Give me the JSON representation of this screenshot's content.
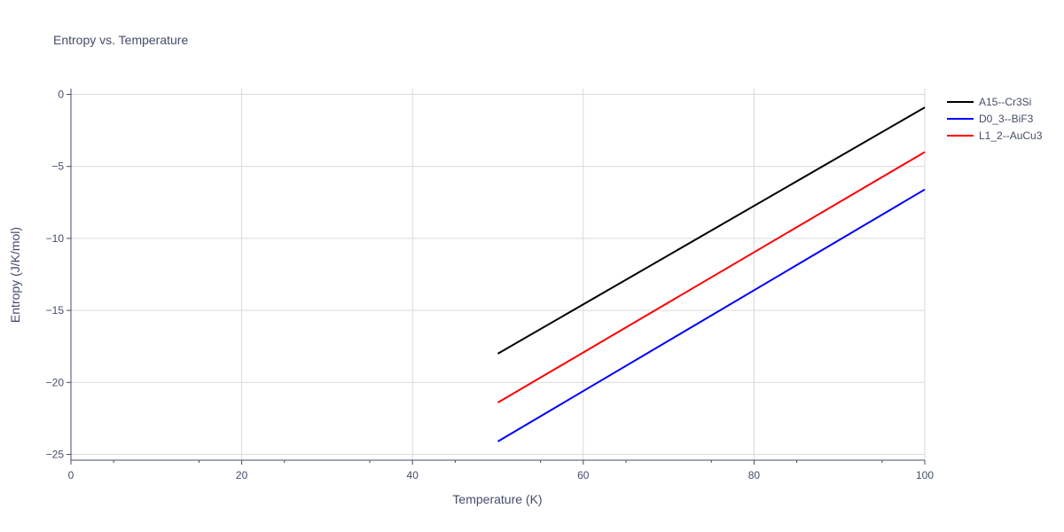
{
  "chart_data": {
    "type": "line",
    "title": "Entropy vs. Temperature",
    "xlabel": "Temperature (K)",
    "ylabel": "Entropy (J/K/mol)",
    "xlim": [
      0,
      100
    ],
    "ylim": [
      -25.4,
      0.4
    ],
    "xticks": [
      0,
      20,
      40,
      60,
      80,
      100
    ],
    "xtick_labels": [
      "0",
      "20",
      "40",
      "60",
      "80",
      "100"
    ],
    "yticks": [
      0,
      -5,
      -10,
      -15,
      -20,
      -25
    ],
    "ytick_labels": [
      "0",
      "−5",
      "−10",
      "−15",
      "−20",
      "−25"
    ],
    "grid": true,
    "legend_position": "top-right, outside plot",
    "series": [
      {
        "name": "A15--Cr3Si",
        "color": "#000000",
        "x": [
          50,
          100
        ],
        "y": [
          -18.0,
          -0.9
        ]
      },
      {
        "name": "D0_3--BiF3",
        "color": "#0000ff",
        "x": [
          50,
          100
        ],
        "y": [
          -24.1,
          -6.6
        ]
      },
      {
        "name": "L1_2--AuCu3",
        "color": "#ff0000",
        "x": [
          50,
          100
        ],
        "y": [
          -21.4,
          -4.0
        ]
      }
    ]
  }
}
